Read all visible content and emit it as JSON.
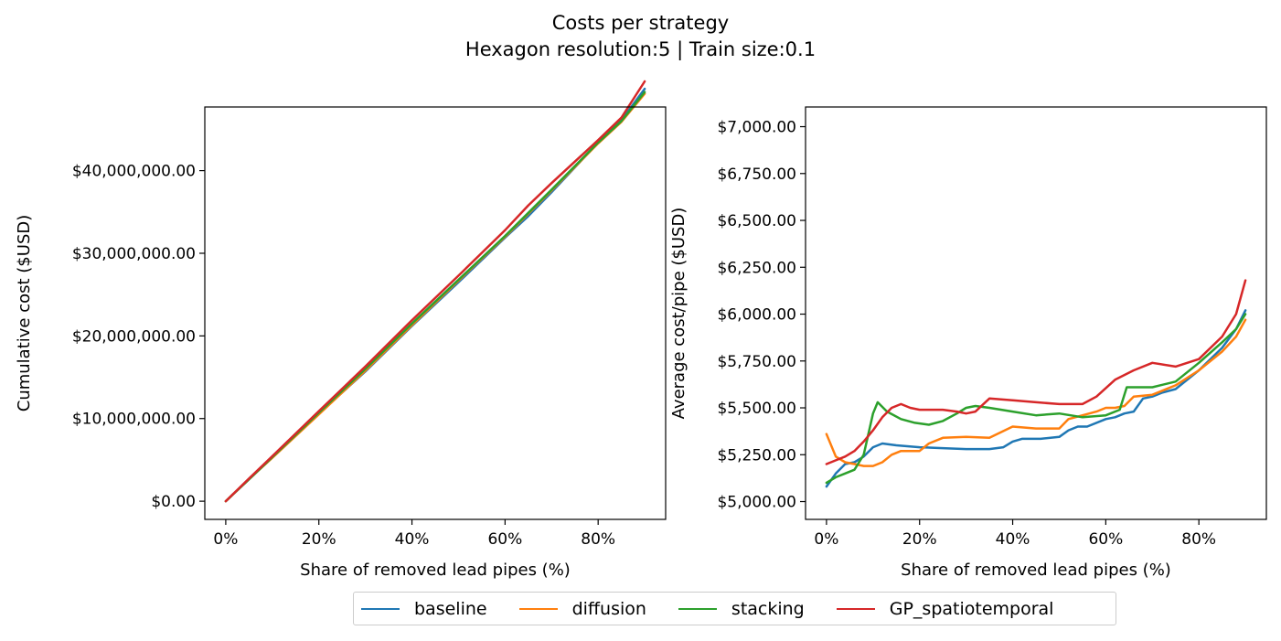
{
  "figure": {
    "title_line1": "Costs per strategy",
    "title_line2": "Hexagon resolution:5 | Train size:0.1"
  },
  "legend": [
    {
      "name": "baseline",
      "color": "#1f77b4"
    },
    {
      "name": "diffusion",
      "color": "#ff7f0e"
    },
    {
      "name": "stacking",
      "color": "#2ca02c"
    },
    {
      "name": "GP_spatiotemporal",
      "color": "#d62728"
    }
  ],
  "chart_data": [
    {
      "type": "line",
      "xlabel": "Share of removed lead pipes (%)",
      "ylabel": "Cumulative cost ($USD)",
      "xlim": [
        -0.045,
        0.945
      ],
      "ylim": [
        -2200000,
        47700000
      ],
      "xticks": [
        0,
        0.2,
        0.4,
        0.6,
        0.8
      ],
      "xtick_labels": [
        "0%",
        "20%",
        "40%",
        "60%",
        "80%"
      ],
      "yticks": [
        0,
        10000000,
        20000000,
        30000000,
        40000000
      ],
      "ytick_labels": [
        "$0.00",
        "$10,000,000.00",
        "$20,000,000.00",
        "$30,000,000.00",
        "$40,000,000.00"
      ],
      "grid": false,
      "series": [
        {
          "name": "baseline",
          "color": "#1f77b4",
          "x": [
            0,
            0.05,
            0.1,
            0.2,
            0.3,
            0.4,
            0.5,
            0.6,
            0.65,
            0.7,
            0.8,
            0.85,
            0.9
          ],
          "y": [
            0,
            2700000,
            5300000,
            10600000,
            15700000,
            21200000,
            26500000,
            31900000,
            34500000,
            37400000,
            43400000,
            46100000,
            49900000
          ]
        },
        {
          "name": "diffusion",
          "color": "#ff7f0e",
          "x": [
            0,
            0.05,
            0.1,
            0.2,
            0.3,
            0.4,
            0.5,
            0.6,
            0.65,
            0.7,
            0.8,
            0.85,
            0.9
          ],
          "y": [
            0,
            2680000,
            5250000,
            10500000,
            15800000,
            21300000,
            26700000,
            32000000,
            34800000,
            37600000,
            43300000,
            45900000,
            49300000
          ]
        },
        {
          "name": "stacking",
          "color": "#2ca02c",
          "x": [
            0,
            0.05,
            0.1,
            0.2,
            0.3,
            0.4,
            0.5,
            0.6,
            0.65,
            0.7,
            0.8,
            0.85,
            0.9
          ],
          "y": [
            0,
            2650000,
            5330000,
            10700000,
            16000000,
            21500000,
            26800000,
            32100000,
            34900000,
            37700000,
            43400000,
            46000000,
            49500000
          ]
        },
        {
          "name": "GP_spatiotemporal",
          "color": "#d62728",
          "x": [
            0,
            0.05,
            0.1,
            0.2,
            0.3,
            0.4,
            0.5,
            0.6,
            0.65,
            0.7,
            0.8,
            0.85,
            0.9
          ],
          "y": [
            0,
            2750000,
            5450000,
            10900000,
            16300000,
            21900000,
            27300000,
            32800000,
            35800000,
            38500000,
            43700000,
            46400000,
            50800000
          ]
        }
      ]
    },
    {
      "type": "line",
      "xlabel": "Share of removed lead pipes (%)",
      "ylabel": "Average cost/pipe ($USD)",
      "xlim": [
        -0.045,
        0.945
      ],
      "ylim": [
        4905,
        7105
      ],
      "xticks": [
        0,
        0.2,
        0.4,
        0.6,
        0.8
      ],
      "xtick_labels": [
        "0%",
        "20%",
        "40%",
        "60%",
        "80%"
      ],
      "yticks": [
        5000,
        5250,
        5500,
        5750,
        6000,
        6250,
        6500,
        6750,
        7000
      ],
      "ytick_labels": [
        "$5,000.00",
        "$5,250.00",
        "$5,500.00",
        "$5,750.00",
        "$6,000.00",
        "$6,250.00",
        "$6,500.00",
        "$6,750.00",
        "$7,000.00"
      ],
      "grid": false,
      "series": [
        {
          "name": "baseline",
          "color": "#1f77b4",
          "x": [
            0,
            0.02,
            0.04,
            0.06,
            0.08,
            0.1,
            0.12,
            0.15,
            0.2,
            0.25,
            0.3,
            0.35,
            0.38,
            0.4,
            0.42,
            0.46,
            0.5,
            0.52,
            0.54,
            0.56,
            0.6,
            0.62,
            0.64,
            0.66,
            0.68,
            0.7,
            0.72,
            0.75,
            0.8,
            0.85,
            0.88,
            0.9
          ],
          "y": [
            5080,
            5150,
            5200,
            5210,
            5240,
            5290,
            5310,
            5300,
            5290,
            5285,
            5280,
            5280,
            5290,
            5320,
            5335,
            5335,
            5345,
            5380,
            5400,
            5400,
            5440,
            5450,
            5470,
            5480,
            5550,
            5560,
            5580,
            5600,
            5700,
            5820,
            5920,
            6020
          ]
        },
        {
          "name": "diffusion",
          "color": "#ff7f0e",
          "x": [
            0,
            0.02,
            0.04,
            0.06,
            0.08,
            0.1,
            0.12,
            0.14,
            0.16,
            0.18,
            0.2,
            0.22,
            0.25,
            0.3,
            0.35,
            0.4,
            0.45,
            0.5,
            0.52,
            0.55,
            0.58,
            0.6,
            0.62,
            0.64,
            0.66,
            0.7,
            0.75,
            0.8,
            0.85,
            0.88,
            0.9
          ],
          "y": [
            5360,
            5240,
            5210,
            5200,
            5190,
            5190,
            5210,
            5250,
            5270,
            5270,
            5270,
            5310,
            5340,
            5345,
            5340,
            5400,
            5390,
            5390,
            5440,
            5460,
            5480,
            5500,
            5500,
            5510,
            5560,
            5570,
            5620,
            5700,
            5800,
            5880,
            5970
          ]
        },
        {
          "name": "stacking",
          "color": "#2ca02c",
          "x": [
            0,
            0.02,
            0.04,
            0.06,
            0.08,
            0.1,
            0.11,
            0.13,
            0.16,
            0.19,
            0.22,
            0.25,
            0.28,
            0.3,
            0.32,
            0.35,
            0.4,
            0.45,
            0.5,
            0.55,
            0.6,
            0.63,
            0.645,
            0.66,
            0.7,
            0.75,
            0.8,
            0.85,
            0.88,
            0.9
          ],
          "y": [
            5100,
            5130,
            5150,
            5170,
            5250,
            5470,
            5530,
            5480,
            5440,
            5420,
            5410,
            5430,
            5470,
            5500,
            5510,
            5500,
            5480,
            5460,
            5470,
            5450,
            5460,
            5490,
            5610,
            5610,
            5610,
            5640,
            5740,
            5850,
            5920,
            6000
          ]
        },
        {
          "name": "GP_spatiotemporal",
          "color": "#d62728",
          "x": [
            0,
            0.02,
            0.04,
            0.06,
            0.08,
            0.1,
            0.12,
            0.14,
            0.16,
            0.18,
            0.2,
            0.25,
            0.28,
            0.3,
            0.32,
            0.35,
            0.4,
            0.45,
            0.5,
            0.55,
            0.58,
            0.62,
            0.66,
            0.7,
            0.75,
            0.8,
            0.85,
            0.88,
            0.9
          ],
          "y": [
            5200,
            5220,
            5240,
            5270,
            5320,
            5380,
            5450,
            5500,
            5520,
            5500,
            5490,
            5490,
            5480,
            5470,
            5480,
            5550,
            5540,
            5530,
            5520,
            5520,
            5560,
            5650,
            5700,
            5740,
            5720,
            5760,
            5880,
            6000,
            6180
          ]
        }
      ]
    }
  ]
}
